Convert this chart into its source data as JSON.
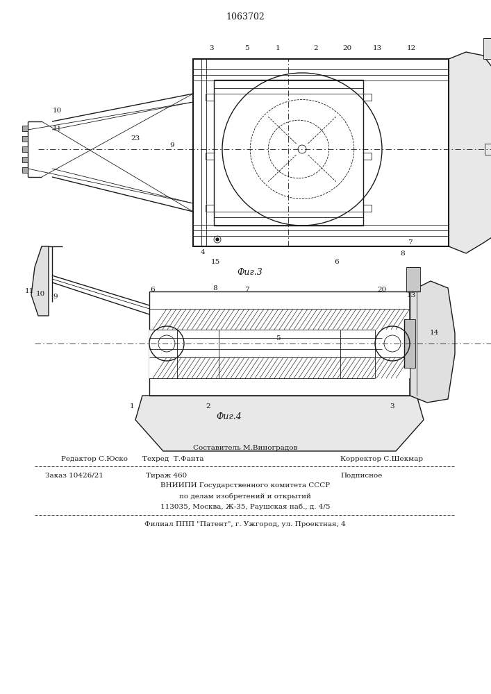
{
  "patent_number": "1063702",
  "bg_color": "#ffffff",
  "line_color": "#1a1a1a",
  "fig3_caption": "Фиг.3",
  "fig4_caption": "Фиг.4",
  "footer": {
    "line1": "Составитель М.Виноградов",
    "line2_left": "Редактор С.Юско",
    "line2_mid": "Техред  Т.Фанта",
    "line2_right": "Корректор С.Шекмар",
    "line3_left": "Заказ 10426/21",
    "line3_mid": "Тираж 460",
    "line3_right": "Подписное",
    "line4": "ВНИИПИ Государственного комитета СССР",
    "line5": "по делам изобретений и открытий",
    "line6": "113035, Москва, Ж-35, Раушская наб., д. 4/5",
    "line7": "Филиал ППП \"Патент\", г. Ужгород, ул. Проектная, 4"
  }
}
